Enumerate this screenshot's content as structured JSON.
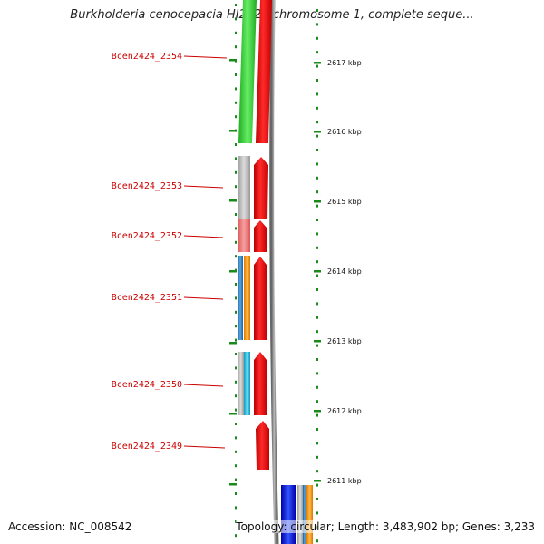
{
  "title": "Burkholderia cenocepacia HI2424 chromosome 1, complete seque...",
  "footer": {
    "accession": "Accession: NC_008542",
    "info": "Topology: circular; Length: 3,483,902 bp; Genes: 3,233"
  },
  "genes": [
    {
      "name": "Bcen2424_2354"
    },
    {
      "name": "Bcen2424_2353"
    },
    {
      "name": "Bcen2424_2352"
    },
    {
      "name": "Bcen2424_2351"
    },
    {
      "name": "Bcen2424_2350"
    },
    {
      "name": "Bcen2424_2349"
    }
  ],
  "coordinates": [
    {
      "label": "2617 kbp"
    },
    {
      "label": "2616 kbp"
    },
    {
      "label": "2615 kbp"
    },
    {
      "label": "2614 kbp"
    },
    {
      "label": "2613 kbp"
    },
    {
      "label": "2612 kbp"
    },
    {
      "label": "2611 kbp"
    }
  ],
  "colors": {
    "gene_forward": "#ff0000",
    "label_red": "#cc0000",
    "tick_green": "#1a8a1a",
    "cog_green": "#33cc33",
    "cog_gray": "#b8b8b8",
    "cog_pink": "#ee7777",
    "cog_blue": "#2f7fc0",
    "cog_orange": "#ff9900",
    "cog_cyan": "#22bbdd",
    "cog_darkblue": "#0000ee",
    "backbone": "#888888"
  }
}
